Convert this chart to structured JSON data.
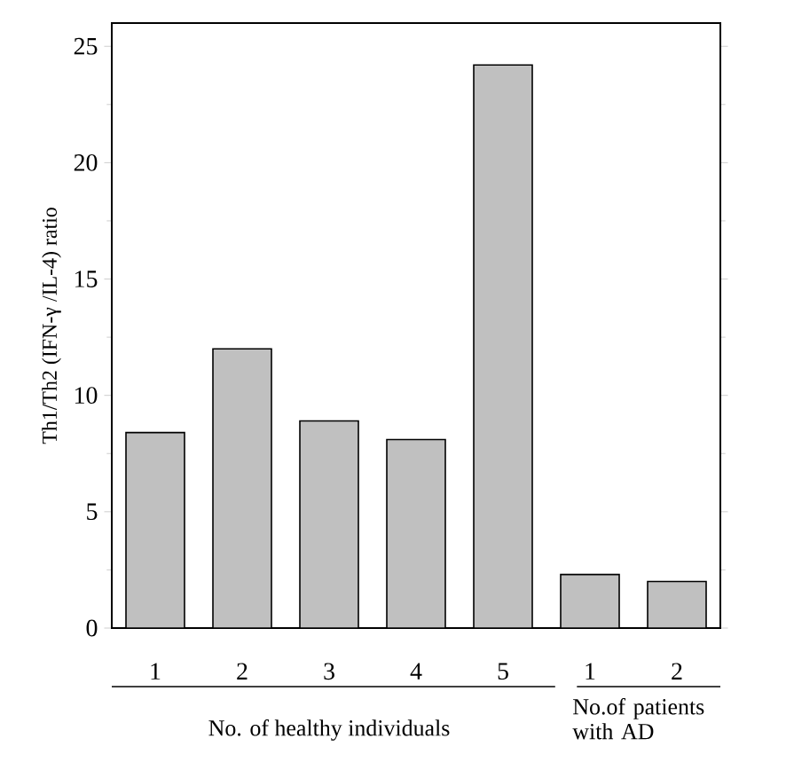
{
  "chart_data": {
    "type": "bar",
    "ylabel": "Th1/Th2 (IFN-γ /IL-4) ratio",
    "categories": [
      "1",
      "2",
      "3",
      "4",
      "5",
      "1",
      "2"
    ],
    "values": [
      8.4,
      12.0,
      8.9,
      8.1,
      24.2,
      2.3,
      2.0
    ],
    "color": "#c0c0c0",
    "ylim": [
      0,
      26
    ],
    "yticks": [
      0,
      5,
      10,
      15,
      20,
      25
    ],
    "annotations": [
      "No. of healthy individuals",
      "No.of patients with AD"
    ]
  }
}
